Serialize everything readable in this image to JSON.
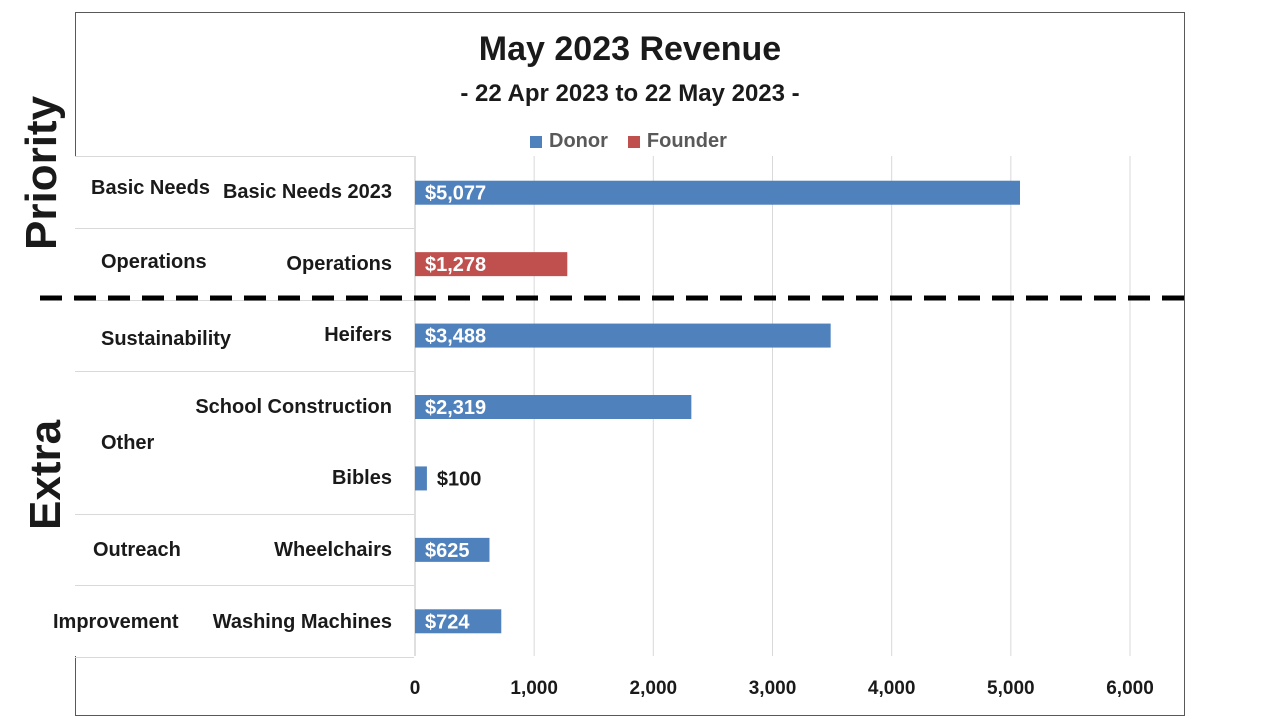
{
  "chart_data": {
    "type": "bar",
    "orientation": "horizontal",
    "title": "May 2023 Revenue",
    "subtitle": "- 22 Apr 2023 to 22 May 2023 -",
    "xlim": [
      0,
      6000
    ],
    "xticks": [
      0,
      1000,
      2000,
      3000,
      4000,
      5000,
      6000
    ],
    "xtick_labels": [
      "0",
      "1,000",
      "2,000",
      "3,000",
      "4,000",
      "5,000",
      "6,000"
    ],
    "grid": true,
    "legend_position": "top",
    "series": [
      {
        "name": "Donor",
        "color": "#4f81bd"
      },
      {
        "name": "Founder",
        "color": "#c0504d"
      }
    ],
    "bars": [
      {
        "group": "Basic Needs",
        "category": "Basic Needs 2023",
        "value": 5077,
        "label": "$5,077",
        "series": "Donor"
      },
      {
        "group": "Operations",
        "category": "Operations",
        "value": 1278,
        "label": "$1,278",
        "series": "Founder"
      },
      {
        "group": "Sustainability",
        "category": "Heifers",
        "value": 3488,
        "label": "$3,488",
        "series": "Donor"
      },
      {
        "group": "Other",
        "category": "School Construction",
        "value": 2319,
        "label": "$2,319",
        "series": "Donor"
      },
      {
        "group": "Other",
        "category": "Bibles",
        "value": 100,
        "label": "$100",
        "series": "Donor"
      },
      {
        "group": "Outreach",
        "category": "Wheelchairs",
        "value": 625,
        "label": "$625",
        "series": "Donor"
      },
      {
        "group": "Improvement",
        "category": "Washing Machines",
        "value": 724,
        "label": "$724",
        "series": "Donor"
      }
    ],
    "groups": [
      "Basic Needs",
      "Operations",
      "Sustainability",
      "Other",
      "Outreach",
      "Improvement"
    ],
    "sections": [
      {
        "name": "Priority"
      },
      {
        "name": "Extra"
      }
    ]
  }
}
